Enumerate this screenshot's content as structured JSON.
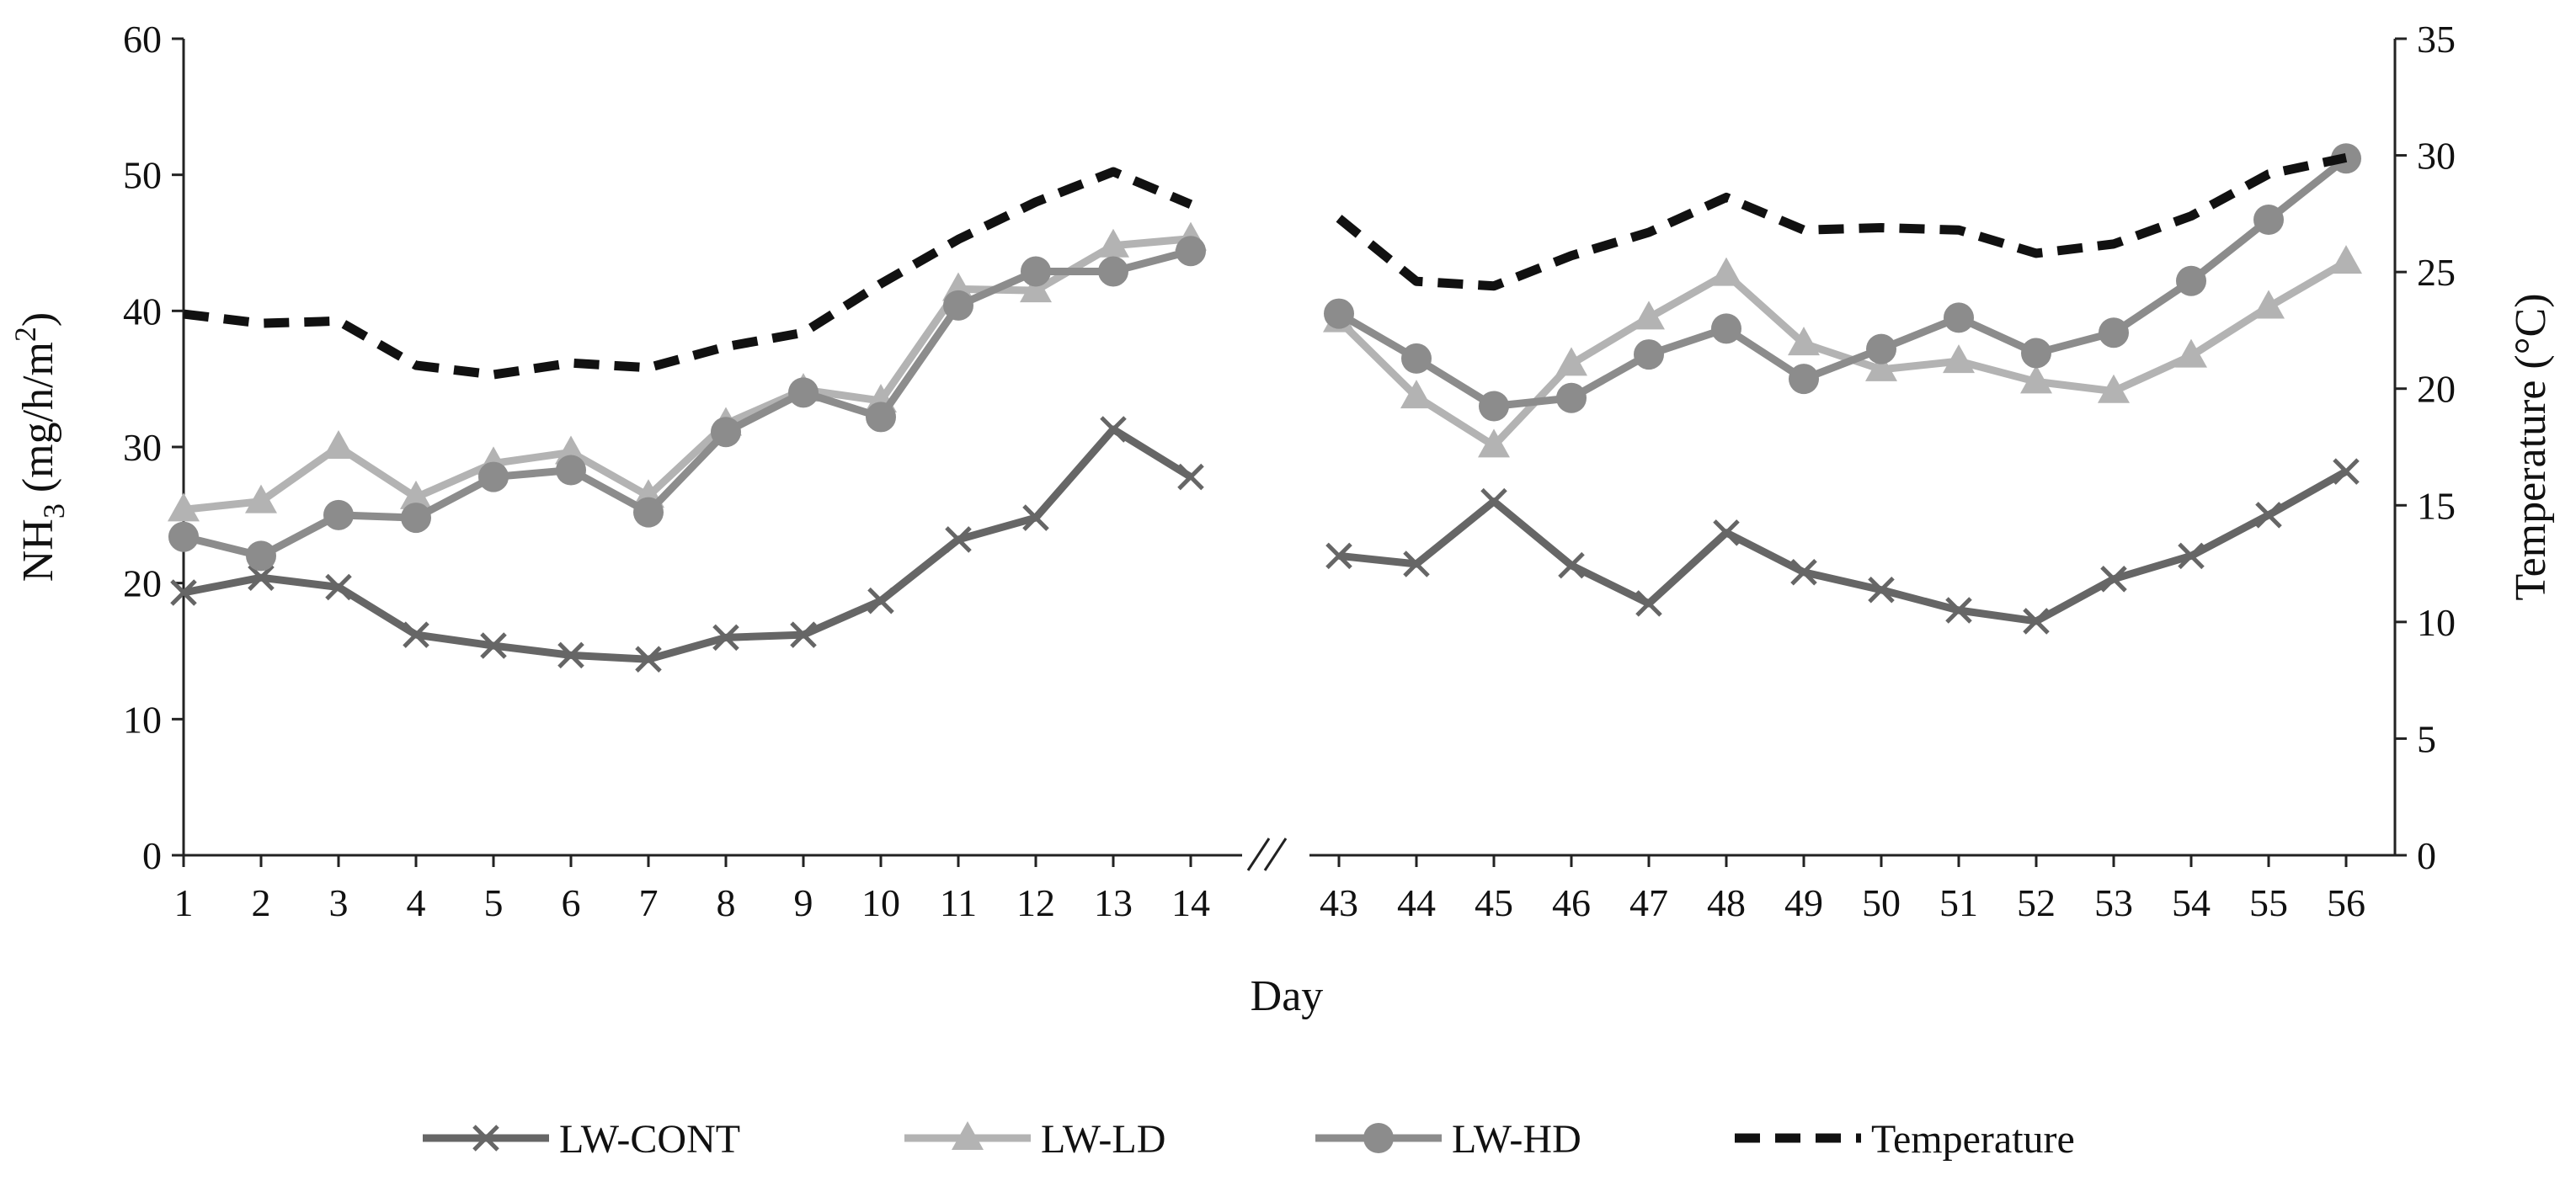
{
  "chart_data": {
    "type": "line",
    "xlabel": "Day",
    "ylabel": "NH3 (mg/h/m2)",
    "ylabel_parts": {
      "base": "NH",
      "sub": "3",
      "mid": " (mg/h/m",
      "sup": "2",
      "end": ")"
    },
    "y2label": "Temperature (°C)",
    "ylim": [
      0,
      60
    ],
    "y2lim": [
      0,
      35
    ],
    "yticks": [
      0,
      10,
      20,
      30,
      40,
      50,
      60
    ],
    "y2ticks": [
      0,
      5,
      10,
      15,
      20,
      25,
      30,
      35
    ],
    "grid": false,
    "legend_position": "bottom",
    "axis_break": "//",
    "segments": [
      {
        "x": [
          1,
          2,
          3,
          4,
          5,
          6,
          7,
          8,
          9,
          10,
          11,
          12,
          13,
          14
        ]
      },
      {
        "x": [
          43,
          44,
          45,
          46,
          47,
          48,
          49,
          50,
          51,
          52,
          53,
          54,
          55,
          56
        ]
      }
    ],
    "series": [
      {
        "name": "LW-CONT",
        "axis": "left",
        "marker": "x",
        "color": "#666666",
        "dash": false,
        "values": [
          [
            19.3,
            20.4,
            19.7,
            16.2,
            15.4,
            14.7,
            14.4,
            16.0,
            16.2,
            18.7,
            23.2,
            24.8,
            31.3,
            27.8
          ],
          [
            22.0,
            21.4,
            26.0,
            21.3,
            18.5,
            23.7,
            20.8,
            19.5,
            18.0,
            17.2,
            20.3,
            22.0,
            25.0,
            28.2
          ]
        ]
      },
      {
        "name": "LW-LD",
        "axis": "left",
        "marker": "triangle",
        "color": "#b3b3b3",
        "dash": false,
        "values": [
          [
            25.4,
            26.0,
            30.0,
            26.3,
            28.8,
            29.6,
            26.4,
            31.7,
            34.2,
            33.4,
            41.6,
            41.5,
            44.8,
            45.3
          ],
          [
            39.3,
            33.7,
            30.1,
            36.1,
            39.5,
            42.7,
            37.6,
            35.7,
            36.3,
            34.8,
            34.1,
            36.7,
            40.3,
            43.6
          ]
        ]
      },
      {
        "name": "LW-HD",
        "axis": "left",
        "marker": "circle",
        "color": "#8c8c8c",
        "dash": false,
        "values": [
          [
            23.4,
            22.0,
            25.0,
            24.8,
            27.8,
            28.3,
            25.2,
            31.1,
            34.0,
            32.2,
            40.4,
            42.9,
            42.9,
            44.4
          ],
          [
            39.8,
            36.5,
            33.0,
            33.6,
            36.8,
            38.7,
            35.0,
            37.2,
            39.5,
            36.9,
            38.4,
            42.2,
            46.7,
            51.2
          ]
        ]
      },
      {
        "name": "Temperature",
        "axis": "right",
        "marker": "none",
        "color": "#111111",
        "dash": true,
        "values": [
          [
            23.2,
            22.8,
            22.9,
            21.0,
            20.6,
            21.1,
            20.9,
            21.8,
            22.4,
            24.5,
            26.4,
            28.0,
            29.3,
            27.9
          ],
          [
            27.3,
            24.6,
            24.4,
            25.7,
            26.7,
            28.2,
            26.8,
            26.9,
            26.8,
            25.8,
            26.2,
            27.4,
            29.2,
            29.9
          ]
        ]
      }
    ]
  }
}
